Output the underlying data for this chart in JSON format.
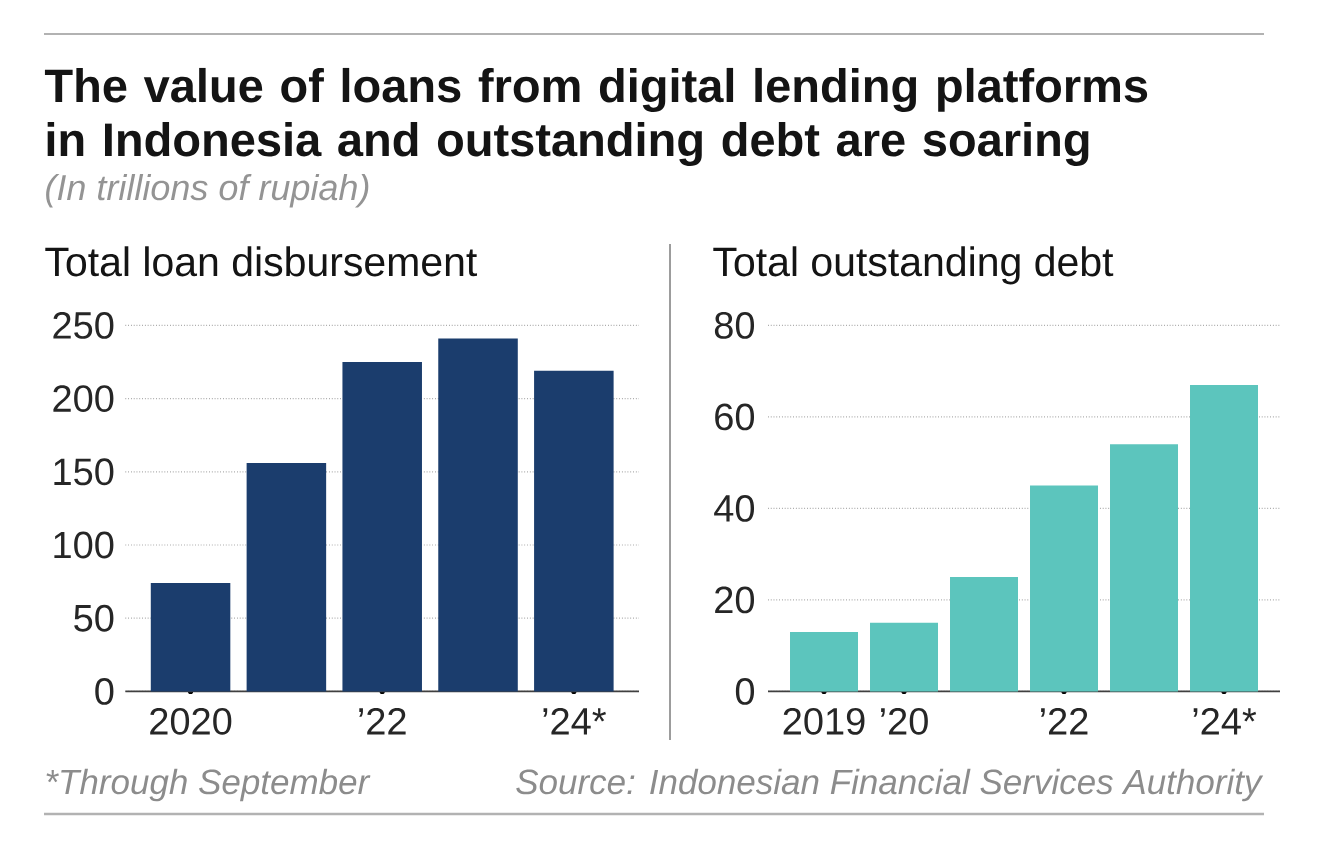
{
  "chart_data": [
    {
      "type": "other",
      "title": "The value of loans from digital lending platforms in Indonesia and outstanding debt are soaring",
      "subtitle": "(In trillions of rupiah)",
      "annotations": [
        "*Through September",
        "Source: Indonesian Financial Services Authority"
      ]
    },
    {
      "type": "bar",
      "title": "Total loan disbursement",
      "categories": [
        "2020",
        null,
        "’22",
        null,
        "’24*"
      ],
      "values": [
        74,
        156,
        225,
        241,
        219
      ],
      "color": "#1b3d6d",
      "ylim": [
        0,
        250
      ],
      "yticks": [
        0,
        50,
        100,
        150,
        200,
        250
      ],
      "grid": "y"
    },
    {
      "type": "bar",
      "title": "Total outstanding debt",
      "categories": [
        "2019",
        "’20",
        null,
        "’22",
        null,
        "’24*"
      ],
      "values": [
        13,
        15,
        25,
        45,
        54,
        67
      ],
      "color": "#5cc5bd",
      "ylim": [
        0,
        80
      ],
      "yticks": [
        0,
        20,
        40,
        60,
        80
      ],
      "grid": "y"
    }
  ]
}
